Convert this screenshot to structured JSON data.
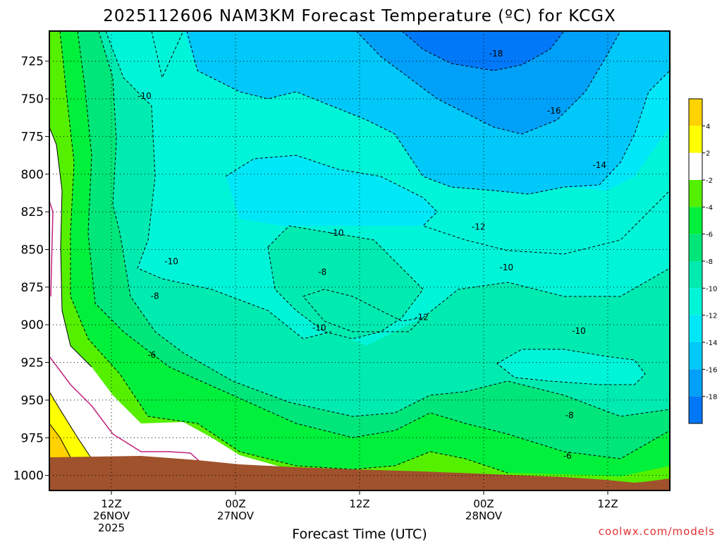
{
  "chart_data": {
    "type": "heatmap",
    "title": "2025112606 NAM3KM Forecast Temperature (ºC) for KCGX",
    "xlabel": "Forecast Time (UTC)",
    "ylabel": "",
    "y_axis": {
      "unit": "hPa",
      "ticks": [
        "725",
        "750",
        "775",
        "800",
        "825",
        "850",
        "875",
        "900",
        "925",
        "950",
        "975",
        "1000"
      ],
      "range": [
        705,
        1010
      ]
    },
    "x_axis": {
      "unit": "forecast hours from 2025112606",
      "range": [
        0,
        60
      ],
      "ticks": [
        {
          "hour": 6,
          "time": "12Z",
          "date": "26NOV",
          "year": "2025"
        },
        {
          "hour": 18,
          "time": "00Z",
          "date": "27NOV",
          "year": ""
        },
        {
          "hour": 30,
          "time": "12Z",
          "date": "",
          "year": ""
        },
        {
          "hour": 42,
          "time": "00Z",
          "date": "28NOV",
          "year": ""
        },
        {
          "hour": 54,
          "time": "12Z",
          "date": "",
          "year": ""
        }
      ]
    },
    "colorbar": {
      "labels": [
        "4",
        "2",
        "-2",
        "-4",
        "-6",
        "-8",
        "-10",
        "-12",
        "-14",
        "-16",
        "-18"
      ],
      "bins": [
        {
          "range": "6 to 4",
          "color": "#ffd200"
        },
        {
          "range": "4 to 2",
          "color": "#ffff00"
        },
        {
          "range": "2 to -2",
          "color": "#ffffff"
        },
        {
          "range": "-2 to -4",
          "color": "#55f000"
        },
        {
          "range": "-4 to -6",
          "color": "#00f03c"
        },
        {
          "range": "-6 to -8",
          "color": "#00e67a"
        },
        {
          "range": "-8 to -10",
          "color": "#00ebb0"
        },
        {
          "range": "-10 to -12",
          "color": "#00f5d8"
        },
        {
          "range": "-12 to -14",
          "color": "#00e8f8"
        },
        {
          "range": "-14 to -16",
          "color": "#00c8f8"
        },
        {
          "range": "-16 to -18",
          "color": "#00a0f8"
        },
        {
          "range": "-18 to -20",
          "color": "#0078f8"
        }
      ]
    },
    "contour_labels": [
      {
        "text": "-18",
        "hour": 43.2,
        "p": 720
      },
      {
        "text": "-16",
        "hour": 48.8,
        "p": 758
      },
      {
        "text": "-14",
        "hour": 53.2,
        "p": 794
      },
      {
        "text": "-12",
        "hour": 41.5,
        "p": 835
      },
      {
        "text": "-10",
        "hour": 9.2,
        "p": 748
      },
      {
        "text": "-10",
        "hour": 11.8,
        "p": 858
      },
      {
        "text": "-10",
        "hour": 27.8,
        "p": 839
      },
      {
        "text": "-10",
        "hour": 44.2,
        "p": 862
      },
      {
        "text": "-10",
        "hour": 26.1,
        "p": 902
      },
      {
        "text": "-10",
        "hour": 51.2,
        "p": 904
      },
      {
        "text": "-8",
        "hour": 10.2,
        "p": 881
      },
      {
        "text": "-8",
        "hour": 26.4,
        "p": 865
      },
      {
        "text": "-8",
        "hour": 50.3,
        "p": 960
      },
      {
        "text": "-6",
        "hour": 9.9,
        "p": 920
      },
      {
        "text": "-6",
        "hour": 50.1,
        "p": 987
      },
      {
        "text": "-12",
        "hour": 36.0,
        "p": 895
      }
    ],
    "surface": {
      "label": "ground (terrain below surface)",
      "color": "#a0522d"
    },
    "credit": "coolwx.com/models"
  }
}
